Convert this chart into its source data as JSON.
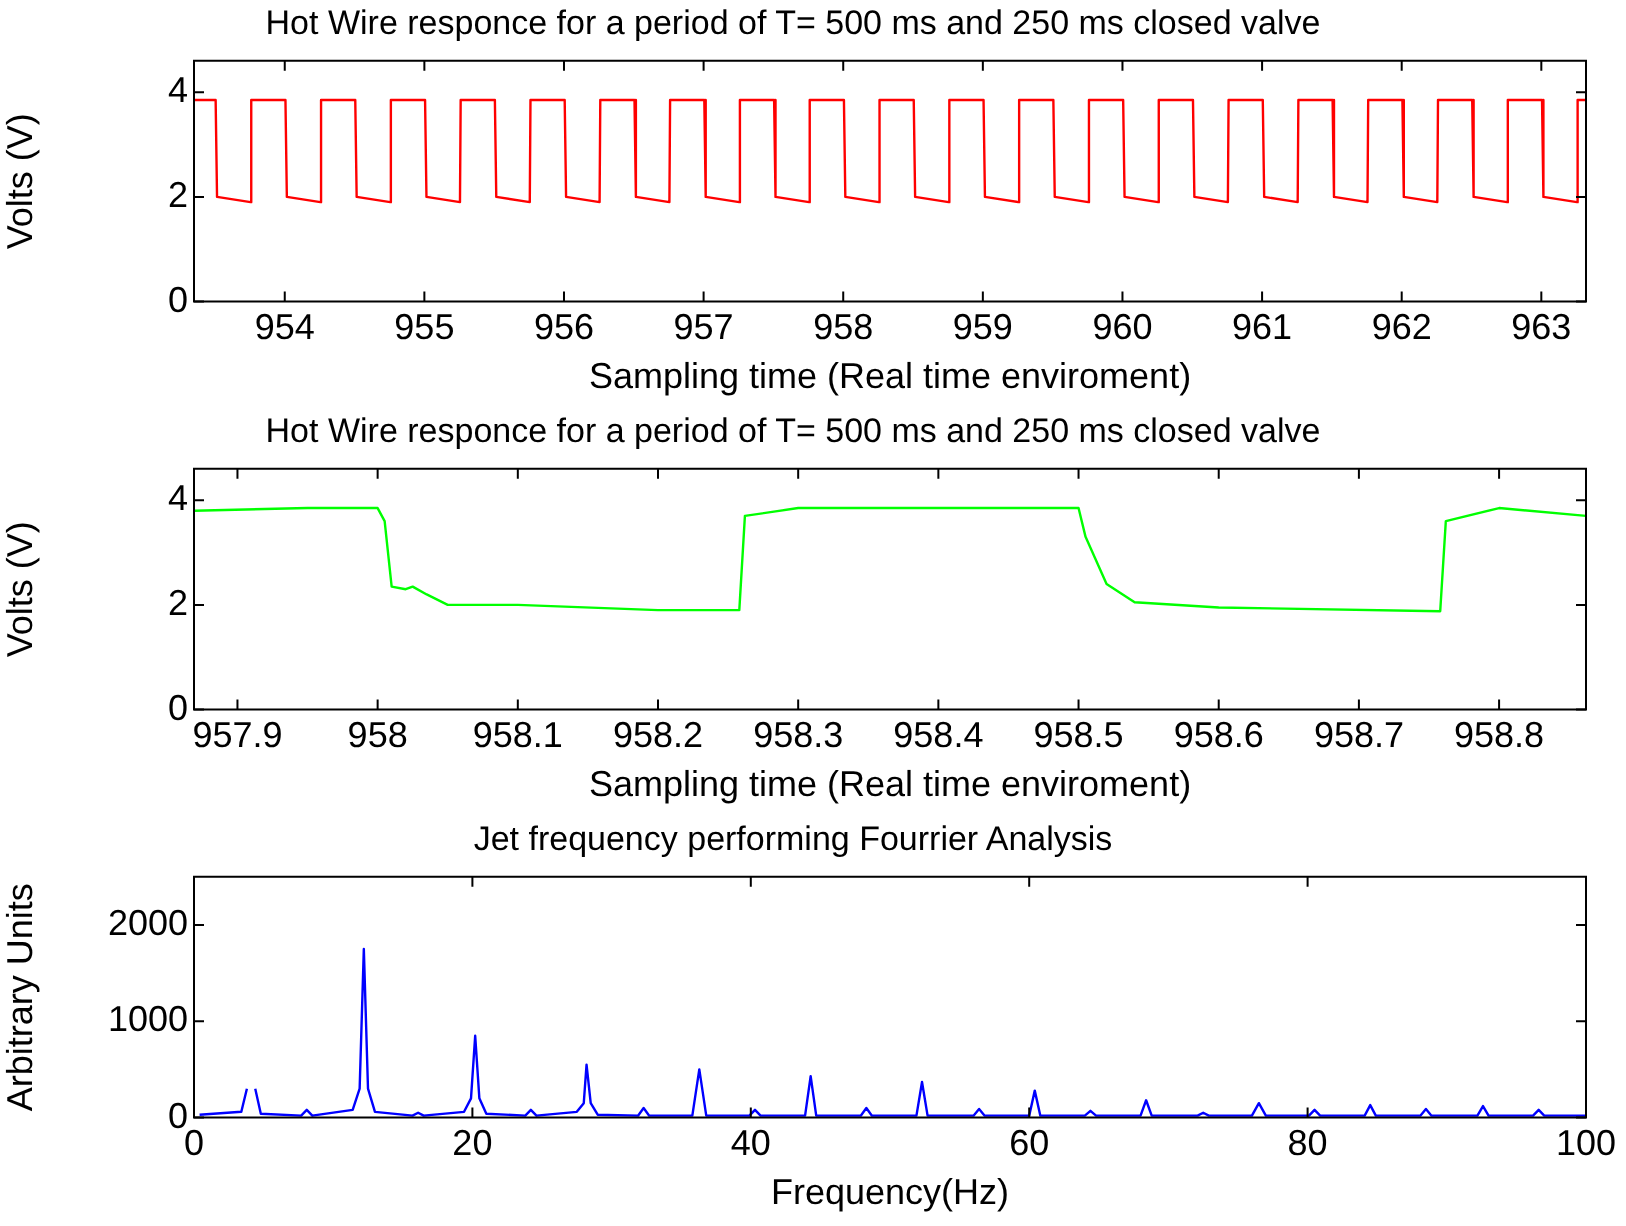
{
  "chart_data": [
    {
      "type": "line",
      "title": "Hot Wire responce for a period of T= 500 ms and 250 ms closed valve",
      "xlabel": "Sampling time (Real time enviroment)",
      "ylabel": "Volts (V)",
      "marker": "none",
      "xlim": [
        953.35,
        963.32
      ],
      "xticks": [
        954,
        955,
        956,
        957,
        958,
        959,
        960,
        961,
        962,
        963
      ],
      "ylim": [
        0,
        4.6
      ],
      "yticks": [
        0,
        2,
        4
      ],
      "series": [
        {
          "color": "#ff0000",
          "x": [
            953.35,
            953.505,
            953.515,
            953.755,
            953.76,
            954.005,
            954.015,
            954.255,
            954.26,
            954.505,
            954.515,
            954.755,
            954.76,
            955.005,
            955.015,
            955.255,
            955.26,
            955.505,
            955.515,
            955.755,
            955.76,
            956.005,
            956.015,
            956.255,
            956.26,
            956.505,
            956.515,
            956.755,
            956.76,
            957.005,
            957.015,
            957.255,
            957.26,
            957.505,
            957.515,
            957.755,
            957.76,
            958.005,
            958.015,
            958.255,
            958.26,
            958.505,
            958.515,
            958.755,
            958.76,
            959.005,
            959.015,
            959.255,
            959.26,
            959.505,
            959.515,
            959.755,
            959.76,
            960.005,
            960.015,
            960.255,
            960.26,
            960.505,
            960.515,
            960.755,
            960.76,
            961.005,
            961.015,
            961.255,
            961.26,
            961.505,
            961.515,
            961.755,
            961.76,
            962.005,
            962.015,
            962.255,
            962.26,
            962.505,
            962.515,
            962.755,
            962.76,
            963.005,
            963.015,
            963.255,
            963.26,
            963.32
          ],
          "values": [
            3.85,
            3.85,
            2.0,
            1.9,
            3.85,
            3.85,
            2.0,
            1.9,
            3.85,
            3.85,
            2.0,
            1.9,
            3.85,
            3.85,
            2.0,
            1.9,
            3.85,
            3.85,
            2.0,
            1.9,
            3.85,
            3.85,
            2.0,
            1.9,
            3.85,
            3.85,
            2.0,
            1.9,
            3.85,
            3.85,
            2.0,
            1.9,
            3.85,
            3.85,
            2.0,
            1.9,
            3.85,
            3.85,
            2.0,
            1.9,
            3.85,
            3.85,
            2.0,
            1.9,
            3.85,
            3.85,
            2.0,
            1.9,
            3.85,
            3.85,
            2.0,
            1.9,
            3.85,
            3.85,
            2.0,
            1.9,
            3.85,
            3.85,
            2.0,
            1.9,
            3.85,
            3.85,
            2.0,
            1.9,
            3.85,
            3.85,
            2.0,
            1.9,
            3.85,
            3.85,
            2.0,
            1.9,
            3.85,
            3.85,
            2.0,
            1.9,
            3.85,
            3.85,
            2.0,
            1.9,
            3.85,
            3.85
          ]
        }
      ]
    },
    {
      "type": "line",
      "title": "Hot Wire responce for a period of T= 500 ms and 250 ms closed valve",
      "xlabel": "Sampling time (Real time enviroment)",
      "ylabel": "Volts (V)",
      "marker": "none",
      "xlim": [
        957.869,
        958.862
      ],
      "xticks": [
        957.9,
        958,
        958.1,
        958.2,
        958.3,
        958.4,
        958.5,
        958.6,
        958.7,
        958.8
      ],
      "ylim": [
        0,
        4.6
      ],
      "yticks": [
        0,
        2,
        4
      ],
      "series": [
        {
          "color": "#00ff00",
          "x": [
            957.869,
            957.95,
            958.0,
            958.005,
            958.01,
            958.02,
            958.025,
            958.035,
            958.05,
            958.1,
            958.2,
            958.258,
            958.262,
            958.3,
            958.4,
            958.5,
            958.505,
            958.52,
            958.54,
            958.6,
            958.758,
            958.762,
            958.8,
            958.862
          ],
          "values": [
            3.8,
            3.85,
            3.85,
            3.6,
            2.35,
            2.3,
            2.35,
            2.2,
            2.0,
            2.0,
            1.9,
            1.9,
            3.7,
            3.85,
            3.85,
            3.85,
            3.3,
            2.4,
            2.05,
            1.95,
            1.88,
            3.6,
            3.85,
            3.7
          ]
        }
      ]
    },
    {
      "type": "line",
      "title": "Jet frequency performing Fourrier Analysis",
      "xlabel": "Frequency(Hz)",
      "ylabel": "Arbitrary Units",
      "marker": "none",
      "xlim": [
        0,
        100
      ],
      "xticks": [
        0,
        20,
        40,
        60,
        80,
        100
      ],
      "ylim": [
        0,
        2500
      ],
      "yticks": [
        0,
        1000,
        2000
      ],
      "series": [
        {
          "color": "#0000ff",
          "x": [
            0.4,
            3.4,
            3.8,
            4.1,
            4.4,
            4.8,
            7.7,
            8.1,
            8.5,
            11.4,
            11.9,
            12.2,
            12.5,
            13,
            15.7,
            16.1,
            16.5,
            19.4,
            19.9,
            20.2,
            20.5,
            21,
            23.8,
            24.2,
            24.6,
            27.5,
            28,
            28.2,
            28.5,
            29,
            31.9,
            32.3,
            32.7,
            35.8,
            36.3,
            36.8,
            39.9,
            40.3,
            40.7,
            43.9,
            44.3,
            44.7,
            47.9,
            48.3,
            48.7,
            51.9,
            52.3,
            52.7,
            56,
            56.4,
            56.8,
            60,
            60.4,
            60.8,
            64,
            64.4,
            64.8,
            68,
            68.4,
            68.8,
            72.1,
            72.5,
            72.9,
            76,
            76.5,
            77,
            80.1,
            80.5,
            80.9,
            84.1,
            84.5,
            84.9,
            88.1,
            88.5,
            88.9,
            92.2,
            92.6,
            93,
            96.2,
            96.6,
            97,
            100
          ],
          "values": [
            30,
            60,
            300,
            null,
            300,
            40,
            20,
            80,
            20,
            80,
            300,
            1750,
            300,
            60,
            20,
            50,
            20,
            60,
            200,
            850,
            200,
            40,
            20,
            80,
            20,
            60,
            150,
            550,
            150,
            30,
            20,
            100,
            20,
            20,
            500,
            20,
            20,
            80,
            20,
            20,
            430,
            20,
            20,
            100,
            20,
            20,
            370,
            20,
            20,
            90,
            20,
            20,
            280,
            20,
            20,
            70,
            20,
            20,
            180,
            20,
            20,
            50,
            20,
            20,
            150,
            20,
            20,
            80,
            20,
            20,
            130,
            20,
            20,
            90,
            20,
            20,
            120,
            20,
            20,
            80,
            20,
            20
          ]
        }
      ]
    }
  ]
}
